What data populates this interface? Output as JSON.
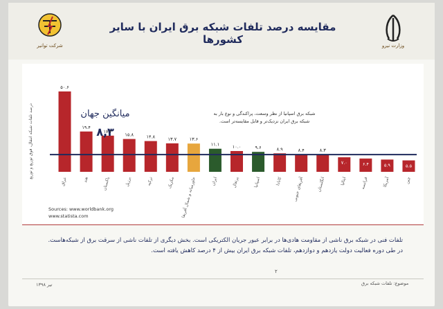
{
  "header": {
    "title": "مقایسه درصد تلفات شبکه برق ایران با سایر کشورها",
    "left_logo_caption": "شرکت توانیر",
    "right_logo_caption": "وزارت نیرو"
  },
  "colors": {
    "bar_default": "#b7262b",
    "bar_iran": "#2b5b2c",
    "bar_spain": "#e7a63d",
    "axis_line": "#1f2a5c",
    "title": "#1f2a5c"
  },
  "annotations": {
    "world_avg_label": "میانگین جهان",
    "world_avg_value": "۸,۳",
    "spain_note_line1": "شبکه برق اسپانیا از نظر وسعت، پراکندگی و نوع بار به",
    "spain_note_line2": "شبکه برق ایران نزدیک‌تر و قابل مقایسه‌تر است.",
    "sources_line1": "Sources: www.worldbank.org",
    "sources_line2": "www.statista.com"
  },
  "chart_data": {
    "type": "bar",
    "ylabel": "درصد تلفات شبکه انتقال، فوق توزیع و توزیع",
    "categories": [
      "چین",
      "آمریکا",
      "فرانسه",
      "ایتالیا",
      "انگلستان",
      "آفریقای جنوبی",
      "کانادا",
      "اسپانیا",
      "پرتغال",
      "ایران",
      "خاورمیانه و شمال آفریقا",
      "مکزیک",
      "ترکیه",
      "برزیل",
      "پاکستان",
      "هند",
      "عراق"
    ],
    "values": [
      5.5,
      5.9,
      6.4,
      7.0,
      8.3,
      8.4,
      8.9,
      9.6,
      10.0,
      11.1,
      13.6,
      13.7,
      14.8,
      15.8,
      17.4,
      19.4,
      50.6
    ],
    "value_labels": [
      "۵.۵",
      "۵.۹",
      "۶.۴",
      "۷.۰",
      "۸.۳",
      "۸.۴",
      "۸.۹",
      "۹.۶",
      "۱۰.۰",
      "۱۱.۱",
      "۱۳.۶",
      "۱۳.۷",
      "۱۴.۸",
      "۱۵.۸",
      "۱۷.۴",
      "۱۹.۴",
      "۵۰.۶"
    ],
    "highlight": {
      "اسپانیا": "bar_iran",
      "ایران": "bar_iran",
      "خاورمیانه و شمال آفریقا": "bar_spain"
    },
    "reference_line": 8.3
  },
  "footer": {
    "line1": "تلفات فنی در شبکه برق ناشی از مقاومت هادی‌ها در برابر عبور جریان الکتریکی است. بخش دیگری از تلفات ناشی از سرقت برق از شبکه‌هاست.",
    "line2": "در طی دوره فعالیت دولت یازدهم و دوازدهم، تلفات شبکه برق ایران بیش از ۴ درصد کاهش یافته است.",
    "page_number": "۲",
    "topic": "موضوع: تلفات شبکه برق",
    "date": "تیر ۱۳۹۸"
  }
}
